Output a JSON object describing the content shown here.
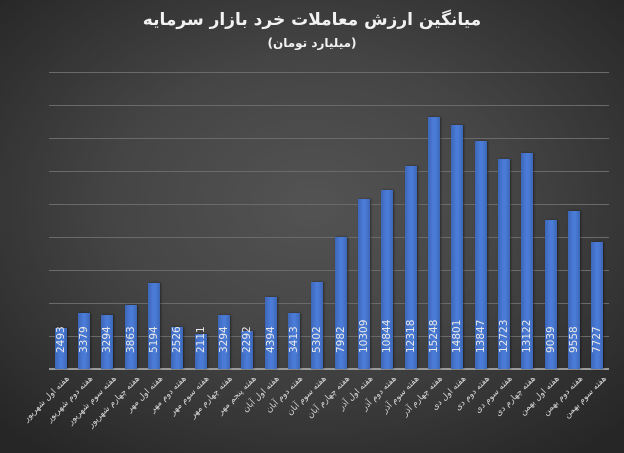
{
  "chart_data": {
    "type": "bar",
    "title": "میانگین ارزش معاملات خرد بازار سرمایه",
    "subtitle": "(میلیارد تومان)",
    "xlabel": "",
    "ylabel": "",
    "ylim": [
      0,
      18000
    ],
    "grid": true,
    "gridline_step": 2000,
    "legend": null,
    "bar_color": "#4472c4",
    "data_labels": true,
    "categories": [
      "هفته اول شهریور",
      "هفته دوم شهریور",
      "هفته سوم شهریور",
      "هفته چهارم شهریور",
      "هفته اول مهر",
      "هفته دوم مهر",
      "هفته سوم مهر",
      "هفته چهارم مهر",
      "هفته پنجم مهر",
      "هفته اول آبان",
      "هفته دوم آبان",
      "هفته سوم آبان",
      "هفته چهارم آبان",
      "هفته اول آذر",
      "هفته دوم آذر",
      "هفته سوم آذر",
      "هفته چهارم آذر",
      "هفته اول دی",
      "هفته دوم دی",
      "هفته سوم دی",
      "هفته چهارم دی",
      "هفته اول بهمن",
      "هفته دوم بهمن",
      "هفته سوم بهمن"
    ],
    "values": [
      2493,
      3379,
      3294,
      3863,
      5194,
      2526,
      2111,
      3294,
      2292,
      4394,
      3413,
      5302,
      7982,
      10309,
      10844,
      12318,
      15248,
      14801,
      13847,
      12723,
      13122,
      9039,
      9558,
      7727
    ]
  }
}
